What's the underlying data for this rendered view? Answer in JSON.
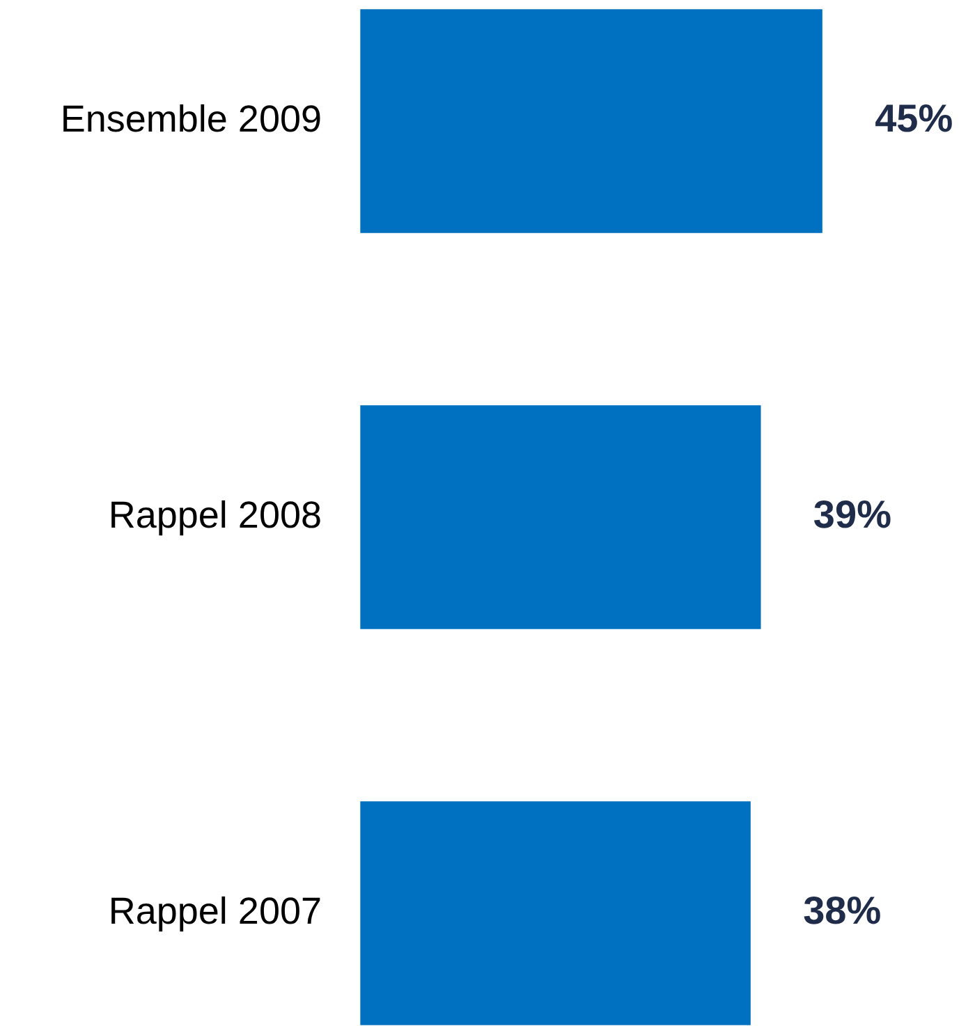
{
  "chart_data": {
    "type": "bar",
    "orientation": "horizontal",
    "categories": [
      "Ensemble 2009",
      "Rappel 2008",
      "Rappel 2007"
    ],
    "values": [
      45,
      39,
      38
    ],
    "color": "#0070c0",
    "value_labels": [
      "45%",
      "39%",
      "38%"
    ],
    "legend": false,
    "grid": false
  }
}
